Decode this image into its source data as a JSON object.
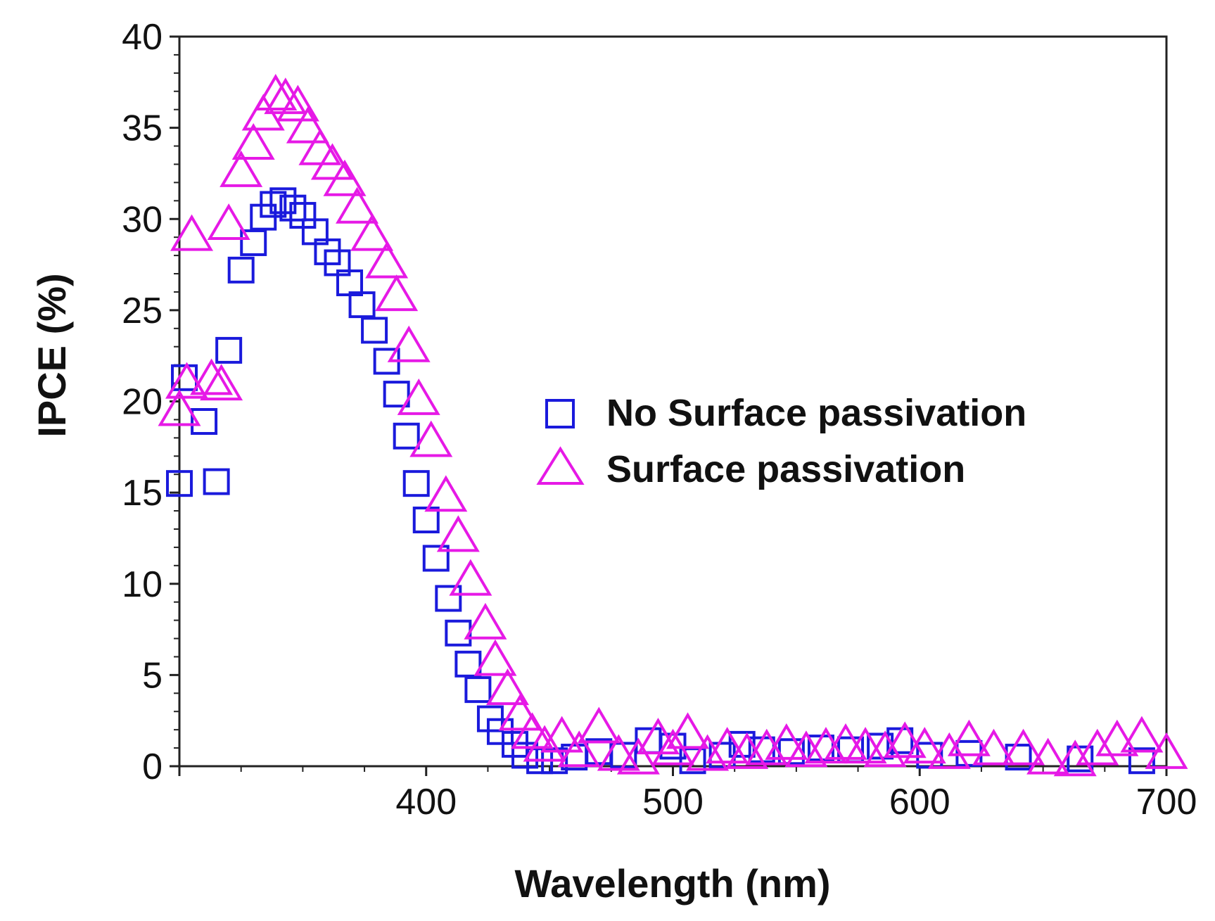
{
  "chart_data": {
    "type": "scatter",
    "title": "",
    "xlabel": "Wavelength (nm)",
    "ylabel": "IPCE (%)",
    "xlim": [
      300,
      700
    ],
    "ylim": [
      0,
      40
    ],
    "grid": false,
    "legend_position": "center-right",
    "x_ticks": [
      400,
      500,
      600,
      700
    ],
    "x_tick_labels": [
      "400",
      "500",
      "600",
      "700"
    ],
    "y_ticks": [
      0,
      5,
      10,
      15,
      20,
      25,
      30,
      35,
      40
    ],
    "y_tick_labels": [
      "0",
      "5",
      "10",
      "15",
      "20",
      "25",
      "30",
      "35",
      "40"
    ],
    "series": [
      {
        "name": "No Surface passivation",
        "marker": "square",
        "color": "#1a1adc",
        "points": [
          [
            300,
            15.5
          ],
          [
            302,
            21.3
          ],
          [
            310,
            18.9
          ],
          [
            315,
            15.6
          ],
          [
            320,
            22.8
          ],
          [
            325,
            27.2
          ],
          [
            330,
            28.7
          ],
          [
            334,
            30.1
          ],
          [
            338,
            30.8
          ],
          [
            342,
            31.0
          ],
          [
            346,
            30.6
          ],
          [
            350,
            30.2
          ],
          [
            355,
            29.3
          ],
          [
            360,
            28.2
          ],
          [
            364,
            27.6
          ],
          [
            369,
            26.5
          ],
          [
            374,
            25.3
          ],
          [
            379,
            23.9
          ],
          [
            384,
            22.2
          ],
          [
            388,
            20.4
          ],
          [
            392,
            18.1
          ],
          [
            396,
            15.5
          ],
          [
            400,
            13.5
          ],
          [
            404,
            11.4
          ],
          [
            409,
            9.2
          ],
          [
            413,
            7.3
          ],
          [
            417,
            5.6
          ],
          [
            421,
            4.2
          ],
          [
            426,
            2.6
          ],
          [
            430,
            1.9
          ],
          [
            436,
            1.2
          ],
          [
            440,
            0.6
          ],
          [
            446,
            0.3
          ],
          [
            452,
            0.3
          ],
          [
            460,
            0.5
          ],
          [
            470,
            0.8
          ],
          [
            480,
            0.6
          ],
          [
            490,
            1.4
          ],
          [
            500,
            1.1
          ],
          [
            508,
            0.3
          ],
          [
            520,
            0.6
          ],
          [
            528,
            1.2
          ],
          [
            536,
            0.9
          ],
          [
            548,
            0.8
          ],
          [
            560,
            1.0
          ],
          [
            572,
            0.9
          ],
          [
            584,
            1.1
          ],
          [
            592,
            1.4
          ],
          [
            604,
            0.6
          ],
          [
            620,
            0.7
          ],
          [
            640,
            0.5
          ],
          [
            665,
            0.4
          ],
          [
            690,
            0.3
          ]
        ]
      },
      {
        "name": "Surface passivation",
        "marker": "triangle",
        "color": "#e619e6",
        "points": [
          [
            300,
            19.5
          ],
          [
            303,
            21.0
          ],
          [
            305,
            29.1
          ],
          [
            313,
            21.2
          ],
          [
            317,
            20.9
          ],
          [
            320,
            29.7
          ],
          [
            325,
            32.6
          ],
          [
            330,
            34.1
          ],
          [
            334,
            35.7
          ],
          [
            339,
            36.8
          ],
          [
            343,
            36.6
          ],
          [
            348,
            36.2
          ],
          [
            352,
            35.0
          ],
          [
            357,
            33.8
          ],
          [
            362,
            33.0
          ],
          [
            367,
            32.1
          ],
          [
            372,
            30.6
          ],
          [
            378,
            29.1
          ],
          [
            384,
            27.6
          ],
          [
            388,
            25.8
          ],
          [
            393,
            23.0
          ],
          [
            397,
            20.1
          ],
          [
            402,
            17.8
          ],
          [
            408,
            14.8
          ],
          [
            413,
            12.6
          ],
          [
            418,
            10.2
          ],
          [
            424,
            7.8
          ],
          [
            428,
            5.8
          ],
          [
            433,
            4.2
          ],
          [
            438,
            2.8
          ],
          [
            443,
            1.8
          ],
          [
            448,
            1.1
          ],
          [
            455,
            1.6
          ],
          [
            462,
            0.8
          ],
          [
            470,
            2.1
          ],
          [
            478,
            0.6
          ],
          [
            486,
            0.4
          ],
          [
            494,
            1.5
          ],
          [
            500,
            0.9
          ],
          [
            506,
            1.8
          ],
          [
            514,
            0.6
          ],
          [
            522,
            1.0
          ],
          [
            530,
            0.7
          ],
          [
            538,
            0.9
          ],
          [
            546,
            1.2
          ],
          [
            554,
            0.8
          ],
          [
            562,
            1.0
          ],
          [
            570,
            1.2
          ],
          [
            578,
            1.0
          ],
          [
            586,
            0.8
          ],
          [
            594,
            1.3
          ],
          [
            602,
            1.0
          ],
          [
            612,
            0.7
          ],
          [
            620,
            1.4
          ],
          [
            630,
            0.9
          ],
          [
            642,
            0.9
          ],
          [
            652,
            0.4
          ],
          [
            663,
            0.3
          ],
          [
            672,
            0.9
          ],
          [
            680,
            1.4
          ],
          [
            690,
            1.6
          ],
          [
            700,
            0.7
          ]
        ]
      }
    ]
  }
}
